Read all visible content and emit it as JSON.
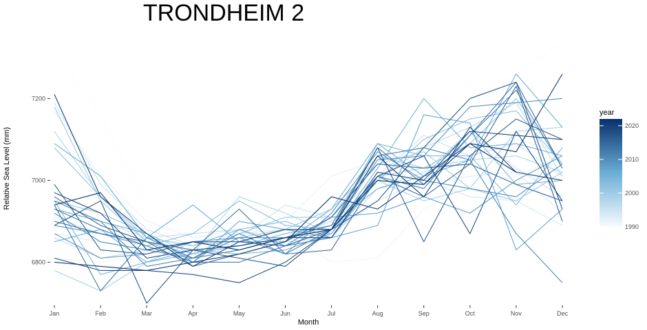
{
  "chart_data": {
    "type": "line",
    "title": "TRONDHEIM 2",
    "xlabel": "Month",
    "ylabel": "Relative Sea Level (mm)",
    "categories": [
      "Jan",
      "Feb",
      "Mar",
      "Apr",
      "May",
      "Jun",
      "Jul",
      "Aug",
      "Sep",
      "Oct",
      "Nov",
      "Dec"
    ],
    "yticks": [
      6800,
      7000,
      7200
    ],
    "ylim": [
      6705,
      7340
    ],
    "grid": false,
    "legend": {
      "title": "year",
      "position": "right",
      "type": "colorbar",
      "range": [
        1990,
        2022
      ],
      "ticks": [
        1990,
        2000,
        2010,
        2020
      ],
      "color_low": "#f7fbff",
      "color_high": "#08306b"
    },
    "series": [
      {
        "year": 1990,
        "values": [
          7315,
          7160,
          6940,
          6860,
          6870,
          6890,
          6940,
          7030,
          7100,
          7180,
          7260,
          7335
        ]
      },
      {
        "year": 1991,
        "values": [
          6810,
          6800,
          6820,
          6830,
          6840,
          6870,
          6800,
          6810,
          6930,
          6990,
          7010,
          7060
        ]
      },
      {
        "year": 1992,
        "values": [
          7170,
          7010,
          6900,
          6860,
          6880,
          6900,
          7010,
          7050,
          7020,
          7060,
          7100,
          7070
        ]
      },
      {
        "year": 1993,
        "values": [
          6910,
          6870,
          6850,
          6830,
          6840,
          6860,
          6900,
          6980,
          6990,
          7010,
          7020,
          6920
        ]
      },
      {
        "year": 1994,
        "values": [
          6870,
          6850,
          6830,
          6850,
          6870,
          6880,
          6870,
          6950,
          7000,
          6960,
          6950,
          6890
        ]
      },
      {
        "year": 1995,
        "values": [
          7190,
          6990,
          6880,
          6840,
          6860,
          6940,
          6910,
          7010,
          7110,
          7060,
          7090,
          7010
        ]
      },
      {
        "year": 1996,
        "values": [
          6930,
          6900,
          6860,
          6870,
          6880,
          6850,
          6860,
          6980,
          7020,
          7120,
          7030,
          6960
        ]
      },
      {
        "year": 1997,
        "values": [
          6860,
          6810,
          6830,
          6850,
          6840,
          6860,
          6900,
          7000,
          7080,
          7130,
          7190,
          7010
        ]
      },
      {
        "year": 1998,
        "values": [
          7120,
          6960,
          6850,
          6820,
          6960,
          6920,
          6870,
          7010,
          7030,
          7050,
          7060,
          7020
        ]
      },
      {
        "year": 1999,
        "values": [
          6780,
          6730,
          6800,
          6850,
          6830,
          6860,
          6870,
          7000,
          6950,
          6980,
          7120,
          7130
        ]
      },
      {
        "year": 2000,
        "values": [
          7180,
          6950,
          6850,
          6810,
          6860,
          6880,
          6930,
          7040,
          7070,
          6980,
          6950,
          7020
        ]
      },
      {
        "year": 2001,
        "values": [
          6950,
          6920,
          6870,
          6820,
          6870,
          6910,
          6910,
          7060,
          7030,
          7090,
          7200,
          7040
        ]
      },
      {
        "year": 2002,
        "values": [
          7080,
          6960,
          6860,
          6840,
          6880,
          6900,
          6860,
          7000,
          7100,
          7150,
          7170,
          7040
        ]
      },
      {
        "year": 2003,
        "values": [
          6890,
          6870,
          6840,
          6870,
          6950,
          6890,
          6880,
          7090,
          7060,
          7060,
          6940,
          7080
        ]
      },
      {
        "year": 2004,
        "values": [
          6950,
          6770,
          6800,
          6820,
          6840,
          6870,
          6890,
          6980,
          7010,
          7120,
          6990,
          7000
        ]
      },
      {
        "year": 2005,
        "values": [
          6850,
          6880,
          6800,
          6830,
          6820,
          6830,
          6870,
          7030,
          7200,
          7080,
          7090,
          7060
        ]
      },
      {
        "year": 2006,
        "values": [
          7090,
          7010,
          6860,
          6940,
          6850,
          6850,
          6930,
          7090,
          7010,
          7050,
          7260,
          7130
        ]
      },
      {
        "year": 2007,
        "values": [
          6930,
          6900,
          6870,
          6800,
          6900,
          6880,
          6860,
          6890,
          7160,
          7140,
          6830,
          6930
        ]
      },
      {
        "year": 2008,
        "values": [
          6890,
          6870,
          6840,
          6800,
          6880,
          6840,
          6910,
          6920,
          6960,
          6920,
          7000,
          7060
        ]
      },
      {
        "year": 2009,
        "values": [
          6870,
          6810,
          6820,
          6850,
          6860,
          6860,
          6880,
          7050,
          7060,
          7180,
          7190,
          7200
        ]
      },
      {
        "year": 2010,
        "values": [
          6920,
          6850,
          6830,
          6810,
          6860,
          6820,
          6920,
          7070,
          7000,
          6980,
          6960,
          7040
        ]
      },
      {
        "year": 2011,
        "values": [
          6950,
          6900,
          6790,
          6810,
          6870,
          6820,
          6880,
          7060,
          7080,
          7050,
          6870,
          6750
        ]
      },
      {
        "year": 2012,
        "values": [
          6930,
          6880,
          6840,
          6800,
          6800,
          6840,
          6860,
          7010,
          6980,
          7110,
          7220,
          7030
        ]
      },
      {
        "year": 2013,
        "values": [
          6940,
          6730,
          6860,
          6810,
          6830,
          6860,
          6890,
          7080,
          6990,
          7110,
          7240,
          7030
        ]
      },
      {
        "year": 2014,
        "values": [
          6900,
          6870,
          6850,
          6830,
          6930,
          6820,
          6830,
          7010,
          6960,
          7040,
          6990,
          6950
        ]
      },
      {
        "year": 2015,
        "values": [
          6960,
          6890,
          6850,
          6790,
          6820,
          6850,
          6910,
          7040,
          7030,
          7040,
          7230,
          6900
        ]
      },
      {
        "year": 2016,
        "values": [
          6990,
          6830,
          6820,
          6850,
          6850,
          6840,
          6880,
          7080,
          6850,
          7060,
          7150,
          7100
        ]
      },
      {
        "year": 2017,
        "values": [
          6890,
          6950,
          6700,
          6830,
          6810,
          6790,
          6880,
          6950,
          7080,
          7200,
          7240,
          6930
        ]
      },
      {
        "year": 2018,
        "values": [
          6810,
          6780,
          6780,
          6770,
          6750,
          6800,
          6880,
          7010,
          7060,
          6870,
          7120,
          6950
        ]
      },
      {
        "year": 2019,
        "values": [
          6970,
          6920,
          6810,
          6830,
          6840,
          6860,
          6860,
          7020,
          7000,
          7120,
          7110,
          7100
        ]
      },
      {
        "year": 2020,
        "values": [
          7210,
          6960,
          6870,
          6790,
          6850,
          6880,
          6880,
          7060,
          6960,
          7130,
          7020,
          7000
        ]
      },
      {
        "year": 2021,
        "values": [
          6800,
          6790,
          6780,
          6800,
          6820,
          6850,
          6960,
          6930,
          7010,
          7090,
          7070,
          7260
        ]
      },
      {
        "year": 2022,
        "values": [
          6940,
          6970,
          6830,
          6850,
          6830,
          6860,
          6880,
          7000,
          6990,
          7090,
          7020,
          null
        ]
      }
    ]
  }
}
